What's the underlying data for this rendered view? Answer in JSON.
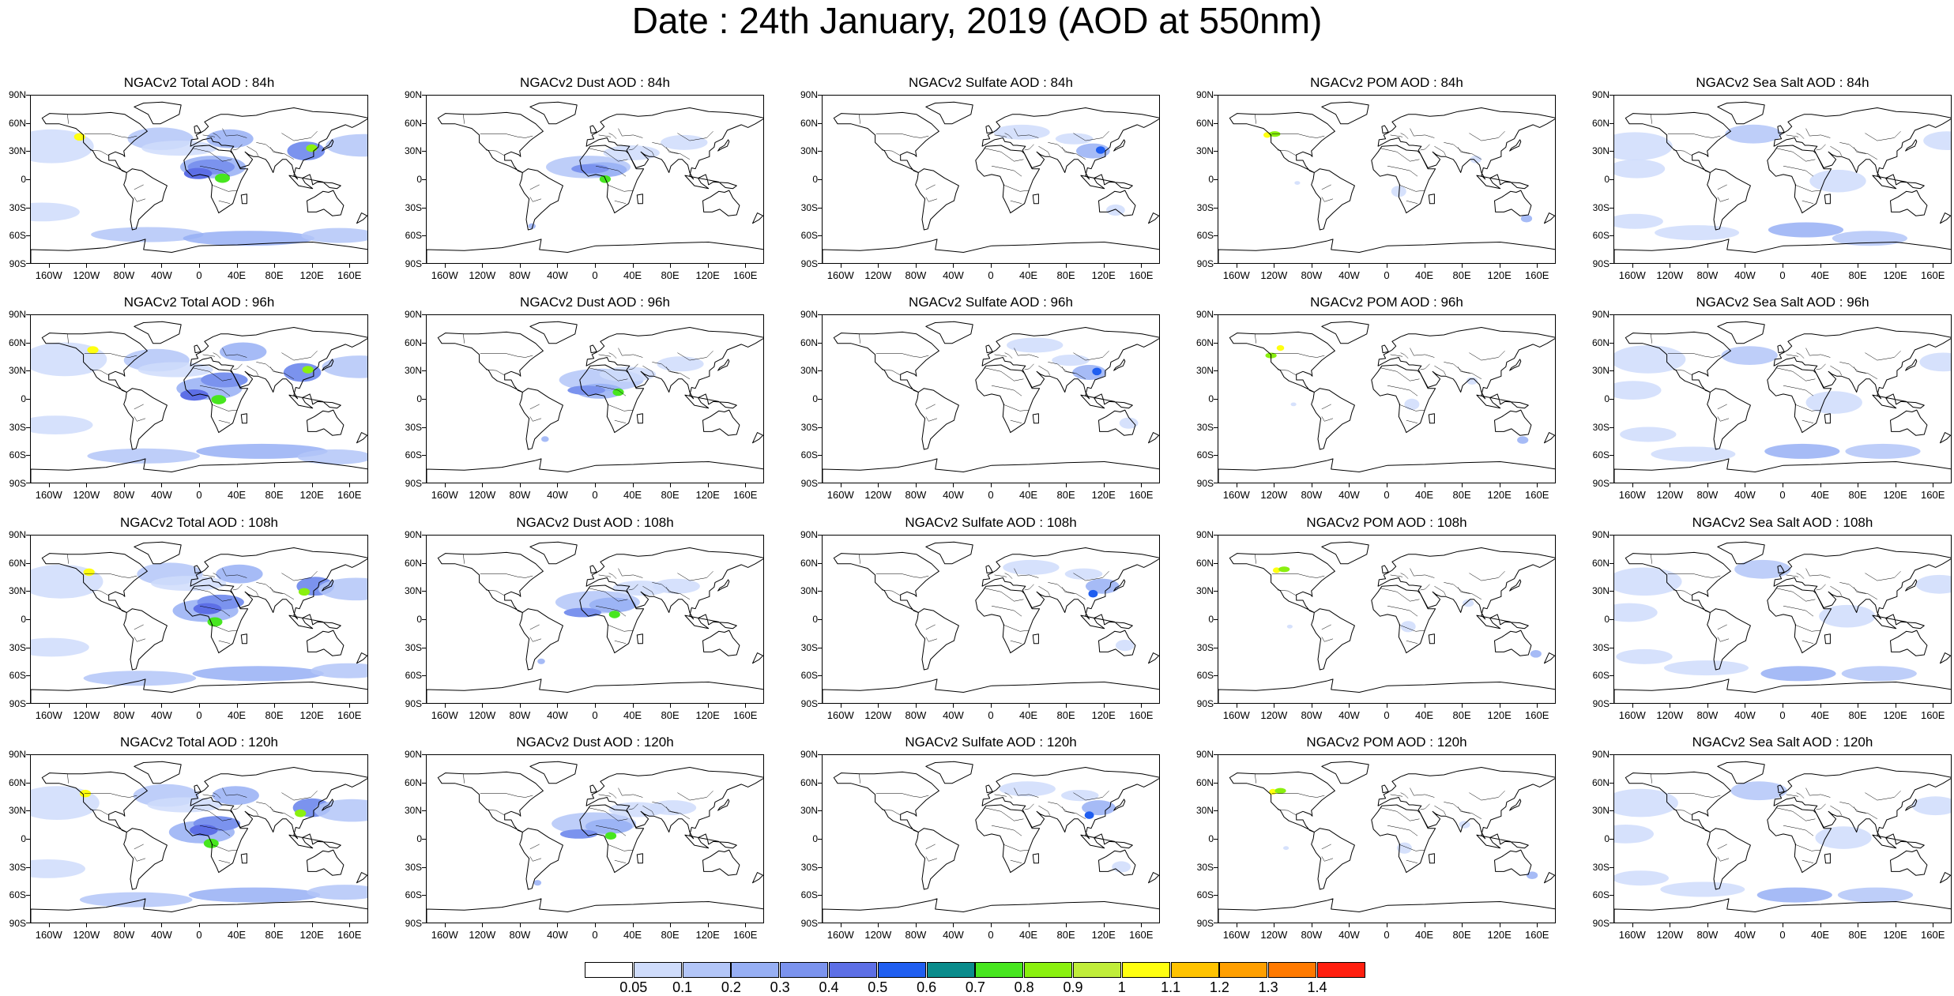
{
  "title": "Date : 24th January, 2019 (AOD at 550nm)",
  "panels": [
    {
      "title": "NGACv2 Total AOD : 84h",
      "species": "total",
      "lead": "84h"
    },
    {
      "title": "NGACv2 Dust AOD : 84h",
      "species": "dust",
      "lead": "84h"
    },
    {
      "title": "NGACv2 Sulfate AOD : 84h",
      "species": "sulfate",
      "lead": "84h"
    },
    {
      "title": "NGACv2 POM AOD : 84h",
      "species": "pom",
      "lead": "84h"
    },
    {
      "title": "NGACv2 Sea Salt AOD : 84h",
      "species": "seasalt",
      "lead": "84h"
    },
    {
      "title": "NGACv2 Total AOD : 96h",
      "species": "total",
      "lead": "96h"
    },
    {
      "title": "NGACv2 Dust AOD : 96h",
      "species": "dust",
      "lead": "96h"
    },
    {
      "title": "NGACv2 Sulfate AOD : 96h",
      "species": "sulfate",
      "lead": "96h"
    },
    {
      "title": "NGACv2 POM AOD : 96h",
      "species": "pom",
      "lead": "96h"
    },
    {
      "title": "NGACv2 Sea Salt AOD : 96h",
      "species": "seasalt",
      "lead": "96h"
    },
    {
      "title": "NGACv2 Total AOD : 108h",
      "species": "total",
      "lead": "108h"
    },
    {
      "title": "NGACv2 Dust AOD : 108h",
      "species": "dust",
      "lead": "108h"
    },
    {
      "title": "NGACv2 Sulfate AOD : 108h",
      "species": "sulfate",
      "lead": "108h"
    },
    {
      "title": "NGACv2 POM AOD : 108h",
      "species": "pom",
      "lead": "108h"
    },
    {
      "title": "NGACv2 Sea Salt AOD : 108h",
      "species": "seasalt",
      "lead": "108h"
    },
    {
      "title": "NGACv2 Total AOD : 120h",
      "species": "total",
      "lead": "120h"
    },
    {
      "title": "NGACv2 Dust AOD : 120h",
      "species": "dust",
      "lead": "120h"
    },
    {
      "title": "NGACv2 Sulfate AOD : 120h",
      "species": "sulfate",
      "lead": "120h"
    },
    {
      "title": "NGACv2 POM AOD : 120h",
      "species": "pom",
      "lead": "120h"
    },
    {
      "title": "NGACv2 Sea Salt  AOD : 120h",
      "species": "seasalt",
      "lead": "120h"
    }
  ],
  "lat_labels": [
    "90N",
    "60N",
    "30N",
    "0",
    "30S",
    "60S",
    "90S"
  ],
  "lon_labels": [
    "160W",
    "120W",
    "80W",
    "40W",
    "0",
    "40E",
    "80E",
    "120E",
    "160E"
  ],
  "lat_values": [
    90,
    60,
    30,
    0,
    -30,
    -60,
    -90
  ],
  "lon_values": [
    -160,
    -120,
    -80,
    -40,
    0,
    40,
    80,
    120,
    160
  ],
  "colorbar": {
    "labels": [
      "0.05",
      "0.1",
      "0.2",
      "0.3",
      "0.4",
      "0.5",
      "0.6",
      "0.7",
      "0.8",
      "0.9",
      "1",
      "1.1",
      "1.2",
      "1.3",
      "1.4"
    ],
    "colors": [
      "#ffffff",
      "#cfdcfb",
      "#b3c6f8",
      "#97aff4",
      "#7b93ee",
      "#5d6fe6",
      "#1f5ef0",
      "#0a8c8c",
      "#47e61f",
      "#8af00f",
      "#c0ed3a",
      "#ffff10",
      "#ffc300",
      "#ff9f00",
      "#ff7a00",
      "#ff1f0f"
    ]
  },
  "species_colors": {
    "total": "#8fa9f2",
    "dust": "#7d95ee",
    "sulfate": "#8fa9f2",
    "pom": "#a2b8f5",
    "seasalt": "#a8bdf6"
  }
}
